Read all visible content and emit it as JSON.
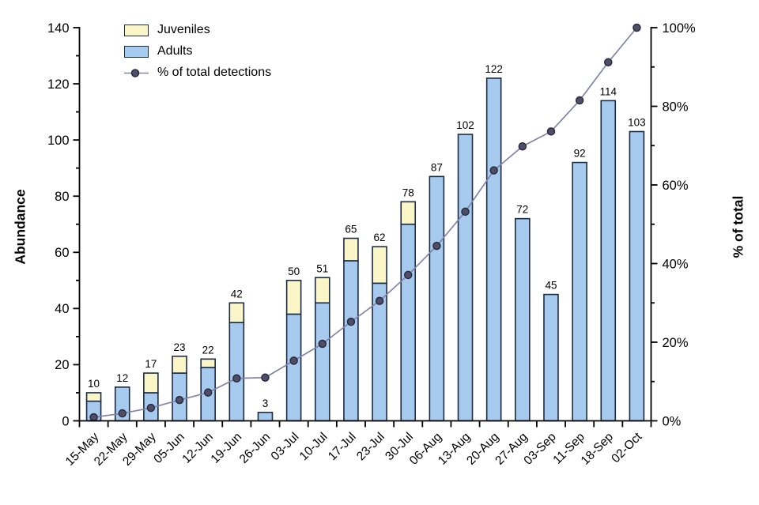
{
  "chart_data": {
    "type": "bar+line",
    "title": "",
    "categories": [
      "15-May",
      "22-May",
      "29-May",
      "05-Jun",
      "12-Jun",
      "19-Jun",
      "26-Jun",
      "03-Jul",
      "10-Jul",
      "17-Jul",
      "23-Jul",
      "30-Jul",
      "06-Aug",
      "13-Aug",
      "20-Aug",
      "27-Aug",
      "03-Sep",
      "11-Sep",
      "18-Sep",
      "02-Oct"
    ],
    "series": [
      {
        "name": "Juveniles",
        "type": "bar",
        "stack": "abundance",
        "axis": "left",
        "color": "#faf6c8",
        "border": "#1c2b45",
        "values": [
          3,
          0,
          7,
          6,
          3,
          7,
          0,
          12,
          9,
          8,
          13,
          8,
          0,
          0,
          0,
          0,
          0,
          0,
          0,
          0
        ]
      },
      {
        "name": "Adults",
        "type": "bar",
        "stack": "abundance",
        "axis": "left",
        "color": "#a6cbee",
        "border": "#1c2b45",
        "values": [
          7,
          12,
          10,
          17,
          19,
          35,
          3,
          38,
          42,
          57,
          49,
          70,
          87,
          102,
          122,
          72,
          45,
          92,
          114,
          103
        ]
      },
      {
        "name": "% of total detections",
        "type": "line",
        "axis": "right",
        "color": "#8284a9",
        "marker_fill": "#4e4e68",
        "marker_stroke": "#2b2b3d",
        "values": [
          0.9,
          1.9,
          3.3,
          5.3,
          7.2,
          10.8,
          11.0,
          15.3,
          19.6,
          25.2,
          30.5,
          37.1,
          44.5,
          53.2,
          63.7,
          69.8,
          73.6,
          81.5,
          91.2,
          100
        ]
      }
    ],
    "bar_total_labels": [
      "10",
      "12",
      "17",
      "23",
      "22",
      "42",
      "3",
      "50",
      "51",
      "65",
      "62",
      "78",
      "87",
      "102",
      "122",
      "72",
      "45",
      "92",
      "114",
      "103"
    ],
    "left_axis": {
      "label": "Abundance",
      "min": 0,
      "max": 140,
      "major_step": 20,
      "minor_step": 10,
      "tick_labels": [
        "0",
        "20",
        "40",
        "60",
        "80",
        "100",
        "120",
        "140"
      ]
    },
    "right_axis": {
      "label": "% of total",
      "min": 0,
      "max": 100,
      "major_step": 20,
      "minor_step": 10,
      "tick_labels": [
        "0%",
        "20%",
        "40%",
        "60%",
        "80%",
        "100%"
      ]
    },
    "legend": {
      "position": "top-left-inside",
      "items": [
        {
          "label": "Juveniles"
        },
        {
          "label": "Adults"
        },
        {
          "label": "% of total detections"
        }
      ]
    },
    "grid": "off",
    "axis_color": "#000000",
    "text_color": "#000000"
  }
}
